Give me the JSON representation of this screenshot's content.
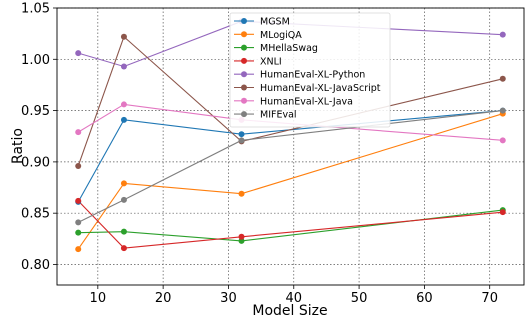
{
  "chart_data": {
    "type": "line",
    "xlabel": "Model Size",
    "ylabel": "Ratio",
    "xlim": [
      3.75,
      75.25
    ],
    "ylim": [
      0.78,
      1.05
    ],
    "xticks": [
      10,
      20,
      30,
      40,
      50,
      60,
      70
    ],
    "yticks": [
      0.8,
      0.85,
      0.9,
      0.95,
      1.0,
      1.05
    ],
    "xtick_labels": [
      "10",
      "20",
      "30",
      "40",
      "50",
      "60",
      "70"
    ],
    "ytick_labels": [
      "0.80",
      "0.85",
      "0.90",
      "0.95",
      "1.00",
      "1.05"
    ],
    "grid": true,
    "grid_style": "dotted",
    "legend_position": "top-center",
    "x": [
      7,
      14,
      32,
      72
    ],
    "series": [
      {
        "name": "MGSM",
        "color": "#1f77b4",
        "values": [
          0.861,
          0.941,
          0.927,
          0.95
        ]
      },
      {
        "name": "MLogiQA",
        "color": "#ff7f0e",
        "values": [
          0.815,
          0.879,
          0.869,
          0.947
        ]
      },
      {
        "name": "MHellaSwag",
        "color": "#2ca02c",
        "values": [
          0.831,
          0.832,
          0.823,
          0.853
        ]
      },
      {
        "name": "XNLI",
        "color": "#d62728",
        "values": [
          0.862,
          0.816,
          0.827,
          0.851
        ]
      },
      {
        "name": "HumanEval-XL-Python",
        "color": "#9467bd",
        "values": [
          1.006,
          0.993,
          1.037,
          1.024
        ]
      },
      {
        "name": "HumanEval-XL-JavaScript",
        "color": "#8c564b",
        "values": [
          0.896,
          1.022,
          0.92,
          0.981
        ]
      },
      {
        "name": "HumanEval-XL-Java",
        "color": "#e377c2",
        "values": [
          0.929,
          0.956,
          0.941,
          0.921
        ]
      },
      {
        "name": "MIFEval",
        "color": "#7f7f7f",
        "values": [
          0.841,
          0.863,
          0.921,
          0.95
        ]
      }
    ]
  }
}
